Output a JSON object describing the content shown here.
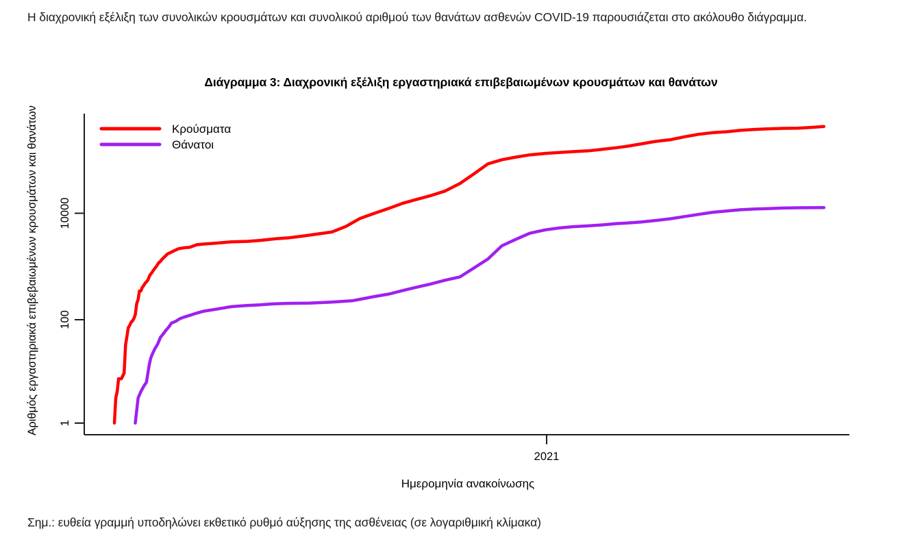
{
  "intro": {
    "text": "Η διαχρονική εξέλιξη των συνολικών κρουσμάτων και συνολικού αριθμού των θανάτων ασθενών COVID-19 παρουσιάζεται στο ακόλουθο διάγραμμα."
  },
  "chart": {
    "title": "Διάγραμμα 3: Διαχρονική εξέλιξη εργαστηριακά επιβεβαιωμένων κρουσμάτων και θανάτων",
    "y_axis_label": "Αριθμός εργαστηριακά επιβεβαιωμένων κρουσμάτων και θανάτων",
    "x_axis_label": "Ημερομηνία ανακοίνωσης",
    "y_tick_labels": {
      "t1": "1",
      "t100": "100",
      "t10000": "10000"
    },
    "x_tick_label": "2021",
    "legend": [
      {
        "label": "Κρούσματα",
        "color": "#FF0000"
      },
      {
        "label": "Θάνατοι",
        "color": "#A020F0"
      }
    ]
  },
  "note": {
    "text": "Σημ.: ευθεία γραμμή υποδηλώνει εκθετικό ρυθμό αύξησης της ασθένειας (σε λογαριθμική κλίμακα)"
  },
  "chart_data": {
    "type": "line",
    "title": "Διάγραμμα 3: Διαχρονική εξέλιξη εργαστηριακά επιβεβαιωμένων κρουσμάτων και θανάτων",
    "xlabel": "Ημερομηνία ανακοίνωσης",
    "ylabel": "Αριθμός εργαστηριακά επιβεβαιωμένων κρουσμάτων και θανάτων",
    "x_type": "date",
    "y_scale": "log10",
    "ylim": [
      1,
      500000
    ],
    "y_ticks": [
      1,
      100,
      10000
    ],
    "x_range": [
      "2020-02-26",
      "2021-07-19"
    ],
    "x_tick_dates": [
      {
        "label": "2021",
        "date": "2021-01-01"
      }
    ],
    "grid": false,
    "legend_position": "top-left",
    "series": [
      {
        "name": "Κρούσματα",
        "color": "#FF0000",
        "points": [
          [
            "2020-02-26",
            1
          ],
          [
            "2020-02-27",
            3
          ],
          [
            "2020-02-28",
            4
          ],
          [
            "2020-02-29",
            7
          ],
          [
            "2020-03-02",
            7
          ],
          [
            "2020-03-04",
            9
          ],
          [
            "2020-03-05",
            31
          ],
          [
            "2020-03-06",
            45
          ],
          [
            "2020-03-07",
            66
          ],
          [
            "2020-03-08",
            73
          ],
          [
            "2020-03-09",
            84
          ],
          [
            "2020-03-10",
            89
          ],
          [
            "2020-03-11",
            99
          ],
          [
            "2020-03-12",
            117
          ],
          [
            "2020-03-13",
            190
          ],
          [
            "2020-03-14",
            228
          ],
          [
            "2020-03-15",
            331
          ],
          [
            "2020-03-16",
            331
          ],
          [
            "2020-03-17",
            387
          ],
          [
            "2020-03-18",
            418
          ],
          [
            "2020-03-19",
            464
          ],
          [
            "2020-03-20",
            495
          ],
          [
            "2020-03-21",
            530
          ],
          [
            "2020-03-22",
            624
          ],
          [
            "2020-03-23",
            695
          ],
          [
            "2020-03-24",
            743
          ],
          [
            "2020-03-25",
            821
          ],
          [
            "2020-03-26",
            892
          ],
          [
            "2020-03-27",
            966
          ],
          [
            "2020-03-28",
            1061
          ],
          [
            "2020-03-29",
            1156
          ],
          [
            "2020-03-30",
            1212
          ],
          [
            "2020-03-31",
            1314
          ],
          [
            "2020-04-04",
            1673
          ],
          [
            "2020-04-08",
            1884
          ],
          [
            "2020-04-12",
            2114
          ],
          [
            "2020-04-16",
            2207
          ],
          [
            "2020-04-20",
            2245
          ],
          [
            "2020-04-25",
            2517
          ],
          [
            "2020-04-30",
            2591
          ],
          [
            "2020-05-10",
            2716
          ],
          [
            "2020-05-20",
            2853
          ],
          [
            "2020-05-31",
            2917
          ],
          [
            "2020-06-10",
            3049
          ],
          [
            "2020-06-20",
            3256
          ],
          [
            "2020-06-30",
            3409
          ],
          [
            "2020-07-10",
            3672
          ],
          [
            "2020-07-20",
            4007
          ],
          [
            "2020-07-31",
            4401
          ],
          [
            "2020-08-10",
            5623
          ],
          [
            "2020-08-20",
            7934
          ],
          [
            "2020-08-31",
            10134
          ],
          [
            "2020-09-10",
            12452
          ],
          [
            "2020-09-20",
            15595
          ],
          [
            "2020-09-30",
            18475
          ],
          [
            "2020-10-10",
            21772
          ],
          [
            "2020-10-20",
            26469
          ],
          [
            "2020-10-31",
            37196
          ],
          [
            "2020-11-10",
            56698
          ],
          [
            "2020-11-20",
            87812
          ],
          [
            "2020-11-30",
            105271
          ],
          [
            "2020-12-10",
            118045
          ],
          [
            "2020-12-20",
            130307
          ],
          [
            "2020-12-31",
            138850
          ],
          [
            "2021-01-10",
            144738
          ],
          [
            "2021-01-20",
            149925
          ],
          [
            "2021-01-31",
            155678
          ],
          [
            "2021-02-10",
            166067
          ],
          [
            "2021-02-20",
            178263
          ],
          [
            "2021-02-28",
            190235
          ],
          [
            "2021-03-10",
            211399
          ],
          [
            "2021-03-20",
            234995
          ],
          [
            "2021-03-31",
            254031
          ],
          [
            "2021-04-10",
            288230
          ],
          [
            "2021-04-20",
            320629
          ],
          [
            "2021-04-30",
            344917
          ],
          [
            "2021-05-10",
            358721
          ],
          [
            "2021-05-20",
            382635
          ],
          [
            "2021-05-31",
            398313
          ],
          [
            "2021-06-10",
            409368
          ],
          [
            "2021-06-20",
            417253
          ],
          [
            "2021-06-30",
            421266
          ],
          [
            "2021-07-10",
            434530
          ],
          [
            "2021-07-19",
            452419
          ]
        ]
      },
      {
        "name": "Θάνατοι",
        "color": "#A020F0",
        "points": [
          [
            "2020-03-12",
            1
          ],
          [
            "2020-03-14",
            3
          ],
          [
            "2020-03-16",
            4
          ],
          [
            "2020-03-18",
            5
          ],
          [
            "2020-03-20",
            6
          ],
          [
            "2020-03-22",
            13
          ],
          [
            "2020-03-23",
            17
          ],
          [
            "2020-03-24",
            20
          ],
          [
            "2020-03-26",
            26
          ],
          [
            "2020-03-28",
            32
          ],
          [
            "2020-03-30",
            43
          ],
          [
            "2020-04-01",
            50
          ],
          [
            "2020-04-03",
            59
          ],
          [
            "2020-04-05",
            68
          ],
          [
            "2020-04-07",
            81
          ],
          [
            "2020-04-10",
            87
          ],
          [
            "2020-04-13",
            98
          ],
          [
            "2020-04-16",
            105
          ],
          [
            "2020-04-20",
            113
          ],
          [
            "2020-04-25",
            125
          ],
          [
            "2020-04-30",
            136
          ],
          [
            "2020-05-10",
            150
          ],
          [
            "2020-05-20",
            166
          ],
          [
            "2020-05-31",
            175
          ],
          [
            "2020-06-10",
            180
          ],
          [
            "2020-06-20",
            188
          ],
          [
            "2020-06-30",
            192
          ],
          [
            "2020-07-15",
            194
          ],
          [
            "2020-07-31",
            203
          ],
          [
            "2020-08-15",
            216
          ],
          [
            "2020-08-31",
            260
          ],
          [
            "2020-09-10",
            289
          ],
          [
            "2020-09-20",
            338
          ],
          [
            "2020-09-30",
            391
          ],
          [
            "2020-10-10",
            449
          ],
          [
            "2020-10-20",
            528
          ],
          [
            "2020-10-31",
            615
          ],
          [
            "2020-11-10",
            909
          ],
          [
            "2020-11-20",
            1347
          ],
          [
            "2020-11-30",
            2406
          ],
          [
            "2020-12-10",
            3194
          ],
          [
            "2020-12-20",
            4172
          ],
          [
            "2020-12-31",
            4838
          ],
          [
            "2021-01-10",
            5263
          ],
          [
            "2021-01-20",
            5570
          ],
          [
            "2021-01-31",
            5764
          ],
          [
            "2021-02-10",
            6017
          ],
          [
            "2021-02-20",
            6371
          ],
          [
            "2021-02-28",
            6534
          ],
          [
            "2021-03-10",
            6843
          ],
          [
            "2021-03-20",
            7297
          ],
          [
            "2021-03-31",
            7880
          ],
          [
            "2021-04-10",
            8680
          ],
          [
            "2021-04-20",
            9540
          ],
          [
            "2021-04-30",
            10453
          ],
          [
            "2021-05-10",
            11089
          ],
          [
            "2021-05-20",
            11675
          ],
          [
            "2021-05-31",
            12122
          ],
          [
            "2021-06-10",
            12331
          ],
          [
            "2021-06-20",
            12589
          ],
          [
            "2021-06-30",
            12754
          ],
          [
            "2021-07-10",
            12806
          ],
          [
            "2021-07-19",
            12852
          ]
        ]
      }
    ]
  }
}
